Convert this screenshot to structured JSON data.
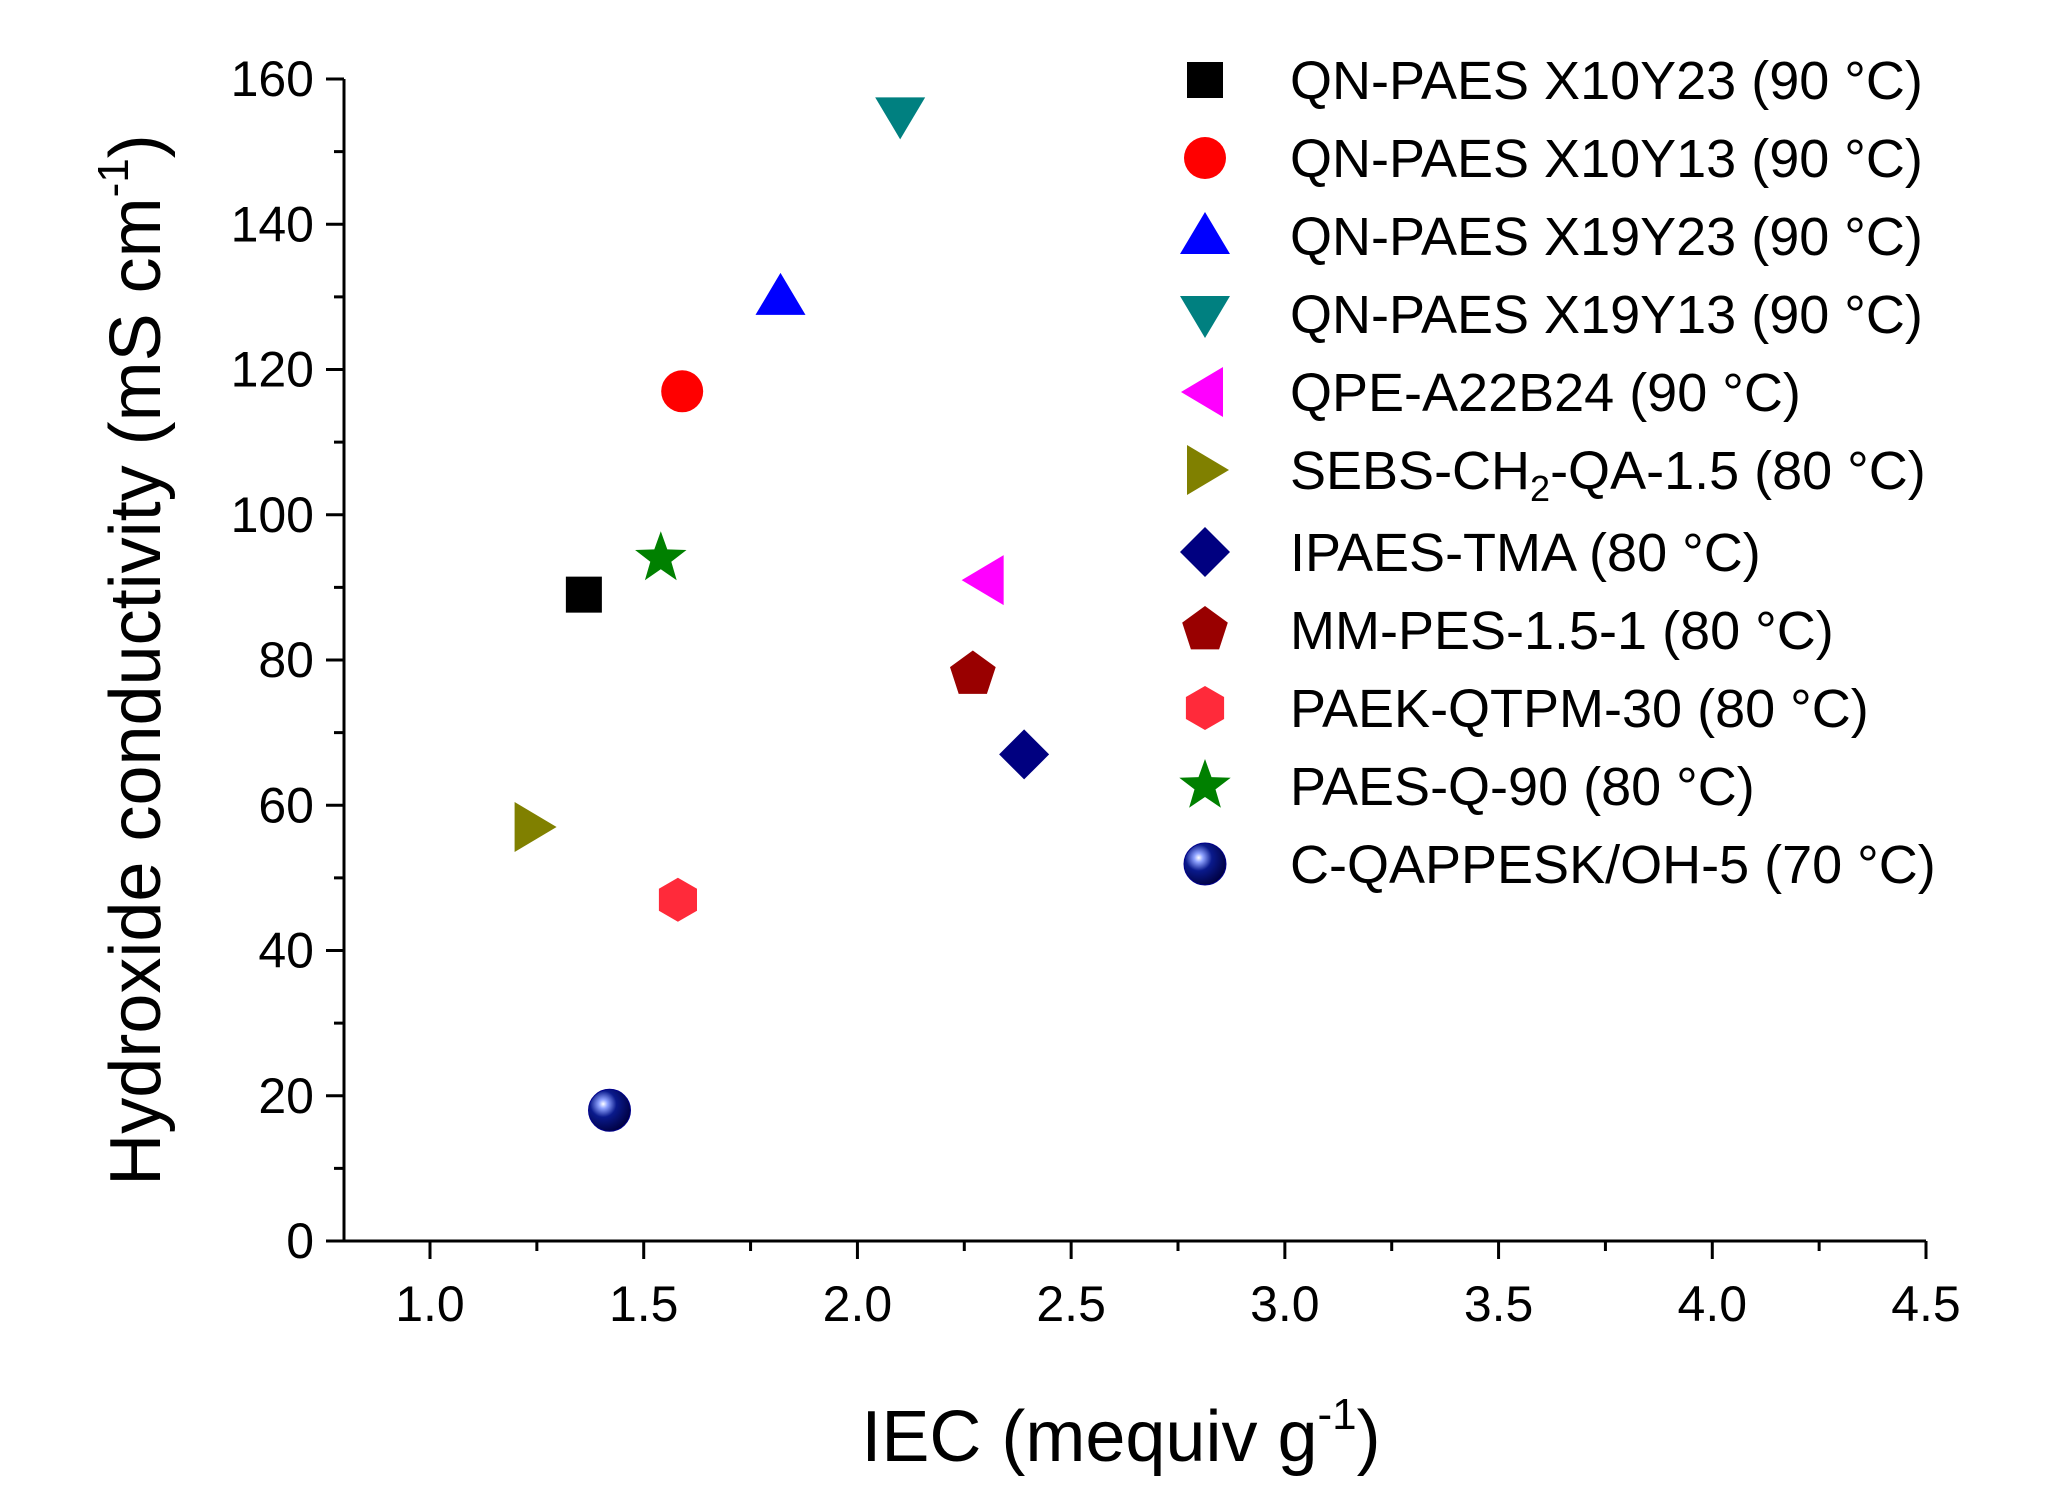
{
  "chart_data": {
    "type": "scatter",
    "xlabel_main": "IEC (mequiv g",
    "xlabel_sup": "-1",
    "xlabel_end": ")",
    "ylabel_main": "Hydroxide conductivity (mS cm",
    "ylabel_sup": "-1",
    "ylabel_end": ")",
    "xlim": [
      0.8,
      4.5
    ],
    "ylim": [
      0,
      160
    ],
    "xticks": [
      1.0,
      1.5,
      2.0,
      2.5,
      3.0,
      3.5,
      4.0,
      4.5
    ],
    "xtick_labels": [
      "1.0",
      "1.5",
      "2.0",
      "2.5",
      "3.0",
      "3.5",
      "4.0",
      "4.5"
    ],
    "yticks": [
      0,
      20,
      40,
      60,
      80,
      100,
      120,
      140,
      160
    ],
    "ytick_labels": [
      "0",
      "20",
      "40",
      "60",
      "80",
      "100",
      "120",
      "140",
      "160"
    ],
    "legend_position": "top-right",
    "series": [
      {
        "name": "QN-PAES X10Y23 (90 °C)",
        "marker": "square",
        "color": "#000000",
        "x": 1.36,
        "y": 89
      },
      {
        "name": "QN-PAES X10Y13 (90 °C)",
        "marker": "circle",
        "color": "#ff0000",
        "x": 1.59,
        "y": 117
      },
      {
        "name": "QN-PAES X19Y23 (90 °C)",
        "marker": "triangle-up",
        "color": "#0000ff",
        "x": 1.82,
        "y": 130
      },
      {
        "name": "QN-PAES X19Y13 (90 °C)",
        "marker": "triangle-down",
        "color": "#008080",
        "x": 2.1,
        "y": 155
      },
      {
        "name": "QPE-A22B24 (90 °C)",
        "marker": "triangle-left",
        "color": "#ff00ff",
        "x": 2.3,
        "y": 91
      },
      {
        "name_main": "SEBS-CH",
        "name_sub": "2",
        "name_end": "-QA-1.5 (80 °C)",
        "marker": "triangle-right",
        "color": "#808000",
        "x": 1.24,
        "y": 57
      },
      {
        "name": "IPAES-TMA (80 °C)",
        "marker": "diamond",
        "color": "#000080",
        "x": 2.39,
        "y": 67
      },
      {
        "name": "MM-PES-1.5-1 (80 °C)",
        "marker": "pentagon",
        "color": "#990000",
        "x": 2.27,
        "y": 78
      },
      {
        "name": "PAEK-QTPM-30 (80 °C)",
        "marker": "hexagon",
        "color": "#ff2a3a",
        "x": 1.58,
        "y": 47
      },
      {
        "name": "PAES-Q-90 (80 °C)",
        "marker": "star",
        "color": "#008000",
        "x": 1.54,
        "y": 94
      },
      {
        "name": "C-QAPPESK/OH-5 (70 °C)",
        "marker": "sphere",
        "color": "#00008b",
        "x": 1.42,
        "y": 18
      }
    ]
  }
}
